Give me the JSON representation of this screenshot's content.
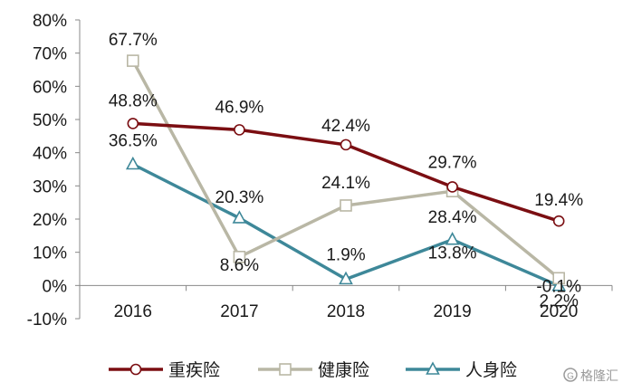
{
  "chart_data": {
    "type": "line",
    "title": "",
    "xlabel": "",
    "ylabel": "",
    "categories": [
      "2016",
      "2017",
      "2018",
      "2019",
      "2020"
    ],
    "ylim": [
      -10,
      80
    ],
    "yticks": [
      -10,
      0,
      10,
      20,
      30,
      40,
      50,
      60,
      70,
      80
    ],
    "ytick_labels": [
      "-10%",
      "0%",
      "10%",
      "20%",
      "30%",
      "40%",
      "50%",
      "60%",
      "70%",
      "80%"
    ],
    "grid": false,
    "legend_position": "bottom",
    "series": [
      {
        "name": "重疾险",
        "color": "#7b0e12",
        "marker": "circle",
        "values": [
          48.8,
          46.9,
          42.4,
          29.7,
          19.4
        ],
        "labels": [
          "48.8%",
          "46.9%",
          "42.4%",
          "29.7%",
          "19.4%"
        ]
      },
      {
        "name": "健康险",
        "color": "#b9b7a5",
        "marker": "square",
        "values": [
          67.7,
          8.6,
          24.1,
          28.4,
          2.2
        ],
        "labels": [
          "67.7%",
          "8.6%",
          "24.1%",
          "28.4%",
          "2.2%"
        ]
      },
      {
        "name": "人身险",
        "color": "#3e8899",
        "marker": "triangle",
        "values": [
          36.5,
          20.3,
          1.9,
          13.8,
          -0.1
        ],
        "labels": [
          "36.5%",
          "20.3%",
          "1.9%",
          "13.8%",
          "-0.1%"
        ]
      }
    ]
  },
  "watermark": {
    "text": "格隆汇",
    "icon": "g-logo-icon",
    "color": "#9a9a9a"
  }
}
